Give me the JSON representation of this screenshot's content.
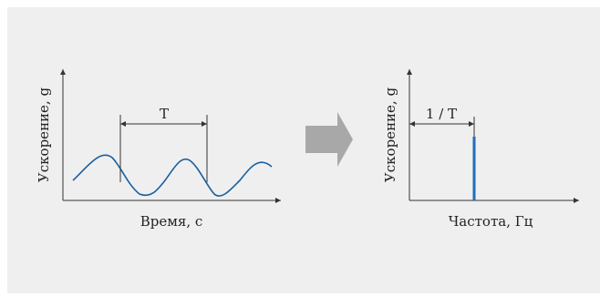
{
  "left_chart": {
    "y_label": "Ускорение, g",
    "x_label": "Время, с",
    "period_label": "T"
  },
  "right_chart": {
    "y_label": "Ускорение, g",
    "x_label": "Частота, Гц",
    "peak_label": "1 / T"
  },
  "colors": {
    "panel_bg": "#efefef",
    "signal": "#1a5f9e",
    "peak": "#1f6fb8",
    "arrow": "#a8a8a8",
    "axis": "#333333"
  }
}
